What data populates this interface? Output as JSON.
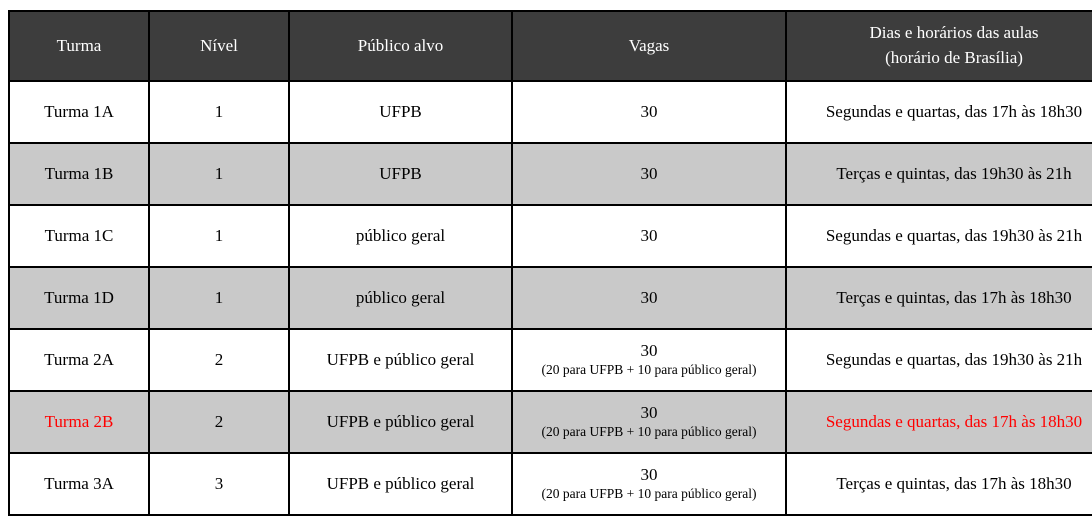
{
  "colors": {
    "header_bg": "#3d3d3d",
    "header_text": "#ffffff",
    "stripe_bg": "#c9c9c9",
    "row_bg": "#ffffff",
    "highlight_text": "#ff0000",
    "border": "#000000"
  },
  "table": {
    "header": {
      "turma": "Turma",
      "nivel": "Nível",
      "publico": "Público alvo",
      "vagas": "Vagas",
      "dias_line1": "Dias e horários das aulas",
      "dias_line2": "(horário de Brasília)"
    },
    "rows": [
      {
        "turma": "Turma 1A",
        "nivel": "1",
        "publico": "UFPB",
        "vagas": "30",
        "vagas_detail": "",
        "dias": "Segundas e quartas, das 17h às 18h30",
        "shaded": false,
        "highlight": false
      },
      {
        "turma": "Turma 1B",
        "nivel": "1",
        "publico": "UFPB",
        "vagas": "30",
        "vagas_detail": "",
        "dias": "Terças e quintas, das 19h30 às 21h",
        "shaded": true,
        "highlight": false
      },
      {
        "turma": "Turma 1C",
        "nivel": "1",
        "publico": "público geral",
        "vagas": "30",
        "vagas_detail": "",
        "dias": "Segundas e quartas, das 19h30 às 21h",
        "shaded": false,
        "highlight": false
      },
      {
        "turma": "Turma 1D",
        "nivel": "1",
        "publico": "público geral",
        "vagas": "30",
        "vagas_detail": "",
        "dias": "Terças e quintas, das 17h às 18h30",
        "shaded": true,
        "highlight": false
      },
      {
        "turma": "Turma 2A",
        "nivel": "2",
        "publico": "UFPB e público geral",
        "vagas": "30",
        "vagas_detail": "(20 para UFPB + 10 para público geral)",
        "dias": "Segundas e quartas, das 19h30 às 21h",
        "shaded": false,
        "highlight": false
      },
      {
        "turma": "Turma 2B",
        "nivel": "2",
        "publico": "UFPB e público geral",
        "vagas": "30",
        "vagas_detail": "(20 para UFPB + 10 para público geral)",
        "dias": "Segundas e quartas, das 17h às 18h30",
        "shaded": true,
        "highlight": true
      },
      {
        "turma": "Turma 3A",
        "nivel": "3",
        "publico": "UFPB e público geral",
        "vagas": "30",
        "vagas_detail": "(20 para UFPB + 10 para público geral)",
        "dias": "Terças e quintas, das 17h às 18h30",
        "shaded": false,
        "highlight": false
      }
    ]
  }
}
